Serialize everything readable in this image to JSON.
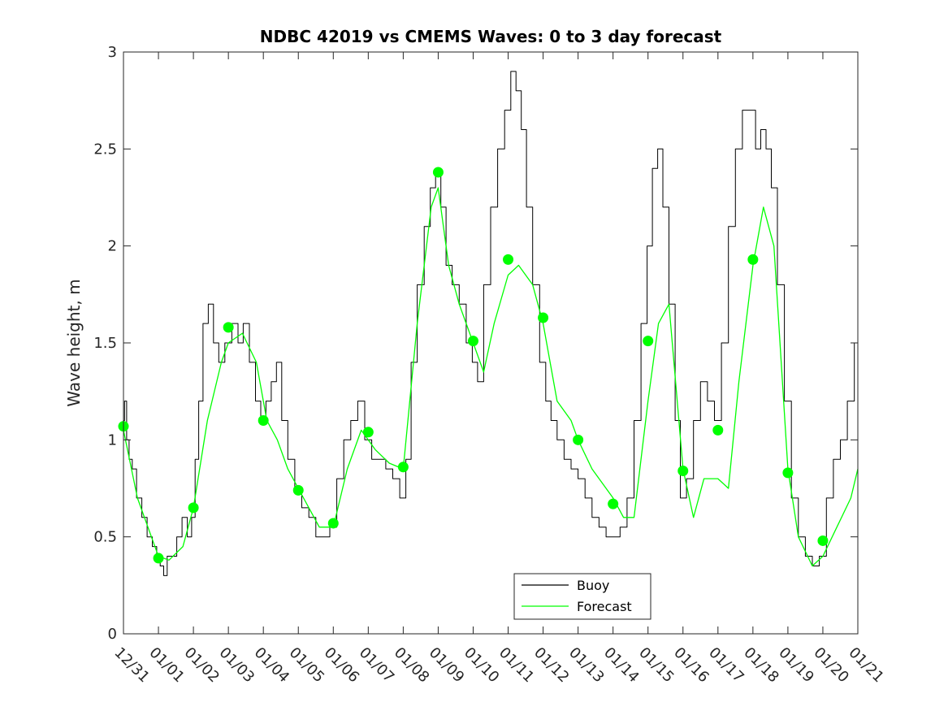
{
  "chart_data": {
    "type": "line",
    "title": "NDBC 42019 vs CMEMS Waves: 0 to 3 day forecast",
    "xlabel": "",
    "ylabel": "Wave height, m",
    "xlim": [
      0,
      21
    ],
    "ylim": [
      0,
      3
    ],
    "x_ticks": [
      {
        "x": 0,
        "label": "12/31"
      },
      {
        "x": 1,
        "label": "01/01"
      },
      {
        "x": 2,
        "label": "01/02"
      },
      {
        "x": 3,
        "label": "01/03"
      },
      {
        "x": 4,
        "label": "01/04"
      },
      {
        "x": 5,
        "label": "01/05"
      },
      {
        "x": 6,
        "label": "01/06"
      },
      {
        "x": 7,
        "label": "01/07"
      },
      {
        "x": 8,
        "label": "01/08"
      },
      {
        "x": 9,
        "label": "01/09"
      },
      {
        "x": 10,
        "label": "01/10"
      },
      {
        "x": 11,
        "label": "01/11"
      },
      {
        "x": 12,
        "label": "01/12"
      },
      {
        "x": 13,
        "label": "01/13"
      },
      {
        "x": 14,
        "label": "01/14"
      },
      {
        "x": 15,
        "label": "01/15"
      },
      {
        "x": 16,
        "label": "01/16"
      },
      {
        "x": 17,
        "label": "01/17"
      },
      {
        "x": 18,
        "label": "01/18"
      },
      {
        "x": 19,
        "label": "01/19"
      },
      {
        "x": 20,
        "label": "01/20"
      },
      {
        "x": 21,
        "label": "01/21"
      }
    ],
    "y_ticks": [
      {
        "y": 0,
        "label": "0"
      },
      {
        "y": 0.5,
        "label": "0.5"
      },
      {
        "y": 1,
        "label": "1"
      },
      {
        "y": 1.5,
        "label": "1.5"
      },
      {
        "y": 2,
        "label": "2"
      },
      {
        "y": 2.5,
        "label": "2.5"
      },
      {
        "y": 3,
        "label": "3"
      }
    ],
    "legend": {
      "position": "bottom-center",
      "entries": [
        {
          "label": "Buoy",
          "color": "#000000"
        },
        {
          "label": "Forecast",
          "color": "#00ff00"
        }
      ]
    },
    "series": [
      {
        "name": "Buoy",
        "color": "#000000",
        "x": [
          0,
          0.06,
          0.12,
          0.2,
          0.3,
          0.45,
          0.6,
          0.75,
          0.9,
          1.0,
          1.1,
          1.2,
          1.3,
          1.45,
          1.6,
          1.75,
          1.9,
          2.0,
          2.1,
          2.2,
          2.35,
          2.5,
          2.65,
          2.8,
          3.0,
          3.2,
          3.35,
          3.5,
          3.7,
          3.85,
          4.0,
          4.15,
          4.3,
          4.45,
          4.6,
          4.8,
          5.0,
          5.2,
          5.4,
          5.6,
          5.8,
          6.0,
          6.2,
          6.4,
          6.6,
          6.8,
          7.0,
          7.2,
          7.4,
          7.6,
          7.8,
          8.0,
          8.15,
          8.3,
          8.5,
          8.7,
          8.85,
          9.0,
          9.15,
          9.3,
          9.5,
          9.7,
          9.9,
          10.05,
          10.2,
          10.4,
          10.6,
          10.8,
          11.0,
          11.15,
          11.3,
          11.45,
          11.6,
          11.8,
          12.0,
          12.15,
          12.3,
          12.5,
          12.7,
          12.9,
          13.1,
          13.3,
          13.5,
          13.7,
          13.9,
          14.1,
          14.3,
          14.5,
          14.7,
          14.9,
          15.05,
          15.2,
          15.35,
          15.5,
          15.7,
          15.85,
          16.0,
          16.2,
          16.4,
          16.6,
          16.8,
          17.0,
          17.2,
          17.4,
          17.6,
          17.8,
          18.0,
          18.15,
          18.3,
          18.45,
          18.6,
          18.8,
          19.0,
          19.2,
          19.4,
          19.6,
          19.8,
          20.0,
          20.2,
          20.4,
          20.6,
          20.8,
          21.0
        ],
        "y": [
          1.1,
          1.2,
          1.0,
          0.9,
          0.85,
          0.7,
          0.6,
          0.5,
          0.45,
          0.4,
          0.35,
          0.3,
          0.4,
          0.4,
          0.5,
          0.6,
          0.5,
          0.6,
          0.9,
          1.2,
          1.6,
          1.7,
          1.5,
          1.4,
          1.5,
          1.6,
          1.5,
          1.6,
          1.4,
          1.2,
          1.1,
          1.2,
          1.3,
          1.4,
          1.1,
          0.9,
          0.75,
          0.65,
          0.6,
          0.5,
          0.5,
          0.55,
          0.8,
          1.0,
          1.1,
          1.2,
          1.0,
          0.9,
          0.9,
          0.85,
          0.8,
          0.7,
          0.9,
          1.4,
          1.8,
          2.1,
          2.3,
          2.4,
          2.2,
          1.9,
          1.8,
          1.7,
          1.5,
          1.4,
          1.3,
          1.8,
          2.2,
          2.5,
          2.7,
          2.9,
          2.8,
          2.6,
          2.2,
          1.8,
          1.4,
          1.2,
          1.1,
          1.0,
          0.9,
          0.85,
          0.8,
          0.7,
          0.6,
          0.55,
          0.5,
          0.5,
          0.55,
          0.7,
          1.1,
          1.6,
          2.0,
          2.4,
          2.5,
          2.2,
          1.7,
          1.1,
          0.7,
          0.8,
          1.1,
          1.3,
          1.2,
          1.1,
          1.5,
          2.1,
          2.5,
          2.7,
          2.7,
          2.5,
          2.6,
          2.5,
          2.3,
          1.8,
          1.2,
          0.7,
          0.5,
          0.4,
          0.35,
          0.4,
          0.7,
          0.9,
          1.0,
          1.2,
          1.5
        ]
      },
      {
        "name": "Forecast",
        "color": "#00ff00",
        "x": [
          0,
          0.4,
          0.8,
          1.0,
          1.3,
          1.7,
          2.0,
          2.4,
          2.8,
          3.0,
          3.4,
          3.8,
          4.1,
          4.4,
          4.7,
          5.0,
          5.3,
          5.6,
          6.0,
          6.4,
          6.8,
          7.2,
          7.6,
          8.0,
          8.4,
          8.8,
          9.0,
          9.3,
          9.6,
          10.0,
          10.3,
          10.6,
          11.0,
          11.3,
          11.7,
          12.0,
          12.4,
          12.8,
          13.0,
          13.4,
          13.8,
          14.0,
          14.3,
          14.6,
          15.0,
          15.3,
          15.6,
          16.0,
          16.3,
          16.6,
          17.0,
          17.3,
          17.6,
          18.0,
          18.3,
          18.6,
          19.0,
          19.3,
          19.7,
          20.0,
          20.4,
          20.8,
          21.0
        ],
        "y": [
          1.05,
          0.7,
          0.5,
          0.4,
          0.38,
          0.45,
          0.65,
          1.1,
          1.4,
          1.5,
          1.55,
          1.4,
          1.1,
          1.0,
          0.85,
          0.75,
          0.65,
          0.55,
          0.55,
          0.85,
          1.05,
          0.95,
          0.88,
          0.85,
          1.6,
          2.2,
          2.3,
          1.9,
          1.7,
          1.5,
          1.35,
          1.6,
          1.85,
          1.9,
          1.8,
          1.6,
          1.2,
          1.1,
          1.0,
          0.85,
          0.75,
          0.7,
          0.6,
          0.6,
          1.2,
          1.6,
          1.7,
          0.85,
          0.6,
          0.8,
          0.8,
          0.75,
          1.3,
          1.9,
          2.2,
          2.0,
          0.85,
          0.5,
          0.35,
          0.4,
          0.55,
          0.7,
          0.85
        ]
      }
    ],
    "markers": {
      "name": "Forecast day-0 points",
      "color": "#00ff00",
      "x": [
        0,
        1,
        2,
        3,
        4,
        5,
        6,
        7,
        8,
        9,
        10,
        11,
        12,
        13,
        14,
        15,
        16,
        17,
        18,
        19,
        20
      ],
      "y": [
        1.07,
        0.39,
        0.65,
        1.58,
        1.1,
        0.74,
        0.57,
        1.04,
        0.86,
        2.38,
        1.51,
        1.93,
        1.63,
        1.0,
        0.67,
        1.51,
        0.84,
        1.05,
        1.93,
        0.83,
        0.48
      ]
    }
  }
}
